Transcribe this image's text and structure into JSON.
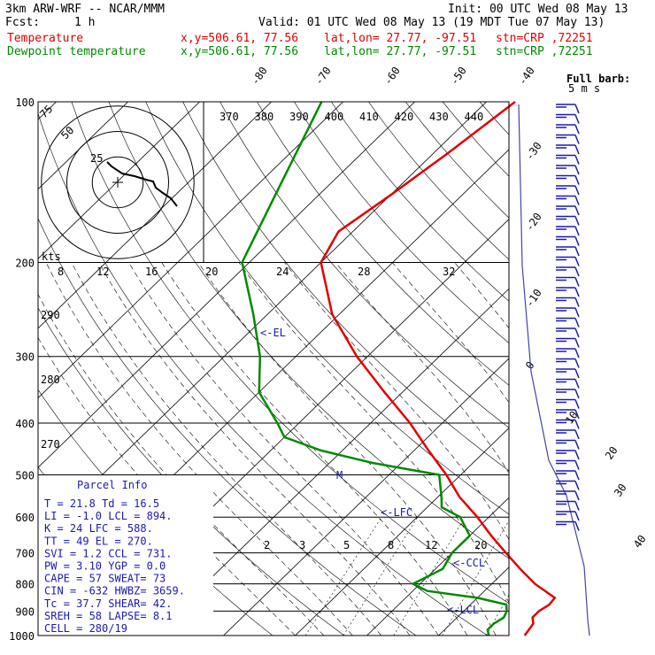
{
  "header": {
    "model": "3km ARW-WRF -- NCAR/MMM",
    "init": "Init: 00 UTC Wed 08 May 13",
    "fcst_label": "Fcst:",
    "fcst_value": "1 h",
    "valid": "Valid: 01 UTC Wed 08 May 13 (19 MDT Tue 07 May 13)",
    "temp_line": {
      "name": "Temperature",
      "xy": "x,y=506.61, 77.56",
      "latlon": "lat,lon= 27.77, -97.51",
      "stn": "stn=CRP ,72251"
    },
    "dew_line": {
      "name": "Dewpoint temperature",
      "xy": "x,y=506.61, 77.56",
      "latlon": "lat,lon= 27.77, -97.51",
      "stn": "stn=CRP ,72251"
    }
  },
  "barb_legend": {
    "line1": "Full barb:",
    "line2": "5 m s"
  },
  "parcel_info": {
    "title": "Parcel Info",
    "rows": [
      "T  =   21.8 Td =  16.5",
      "LI =   -1.0 LCL =  894.",
      "K  =     24 LFC =  588.",
      "TT =     49 EL  =  270.",
      "SVI =   1.2 CCL =  731.",
      "PW =   3.10 YGP =   0.0",
      "CAPE =   57 SWEAT=   73",
      "CIN =  -632 HWBZ= 3659.",
      "Tc =   37.7 SHEAR=  42.",
      "SREH =   58 LAPSE=  8.1",
      "CELL = 280/19"
    ]
  },
  "hodograph": {
    "rings": [
      "25",
      "50",
      "75"
    ],
    "kts_label": "kts"
  },
  "annotations": [
    "<-EL",
    "<-LFC",
    "<-CCL",
    "<-LCL",
    "M"
  ],
  "chart_data": {
    "type": "line",
    "subtype": "skew-T log-P diagram",
    "pressure_levels_hpa": [
      100,
      200,
      300,
      400,
      500,
      600,
      700,
      800,
      900,
      1000
    ],
    "isotherm_labels_top": [
      "-80",
      "-70",
      "-60",
      "-50",
      "-40"
    ],
    "isotherm_labels_right": [
      "-30",
      "-20",
      "-10",
      "0",
      "10",
      "20",
      "30",
      "40"
    ],
    "theta_labels": [
      "370",
      "380",
      "390",
      "400",
      "410",
      "420",
      "430",
      "440"
    ],
    "theta_labels_left": [
      "290",
      "280",
      "270"
    ],
    "mixing_ratio_labels_upper": [
      "8",
      "12",
      "16",
      "20",
      "24",
      "28",
      "32"
    ],
    "mixing_ratio_labels_lower": [
      "2",
      "3",
      "5",
      "8",
      "12",
      "20"
    ],
    "series": [
      {
        "name": "Temperature",
        "color": "#e10000",
        "p": [
          1000,
          950,
          925,
          900,
          875,
          850,
          800,
          750,
          700,
          650,
          600,
          550,
          500,
          450,
          400,
          350,
          300,
          250,
          200,
          175,
          150,
          125,
          100
        ],
        "t": [
          22,
          21.5,
          20.5,
          20.5,
          21,
          20.8,
          16,
          11.8,
          7.5,
          3,
          -1.6,
          -7,
          -12,
          -18,
          -24.5,
          -32.5,
          -41.5,
          -51,
          -60,
          -62,
          -60,
          -58,
          -56
        ]
      },
      {
        "name": "Dewpoint temperature",
        "color": "#008a00",
        "p": [
          1000,
          975,
          950,
          925,
          900,
          875,
          850,
          825,
          800,
          775,
          750,
          700,
          650,
          600,
          575,
          550,
          500,
          475,
          450,
          425,
          400,
          350,
          300,
          250,
          200,
          150,
          100
        ],
        "t": [
          17,
          16,
          16,
          16.5,
          16,
          15,
          10,
          2,
          -1,
          0,
          1,
          0,
          0,
          -4,
          -8,
          -9.5,
          -13,
          -24,
          -33,
          -40,
          -43,
          -50,
          -55,
          -62,
          -71,
          -76,
          -83
        ]
      }
    ]
  }
}
